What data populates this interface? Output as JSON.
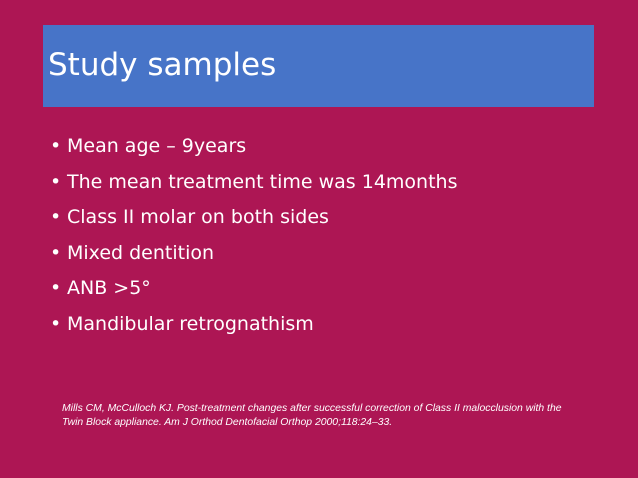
{
  "slide": {
    "title": "Study samples",
    "bullets": [
      "Mean age – 9years",
      "The mean treatment time was 14months",
      "Class II molar on both sides",
      "Mixed dentition",
      "ANB >5°",
      "Mandibular retrognathism"
    ],
    "bullet_symbol": "•",
    "citation": "Mills CM, McCulloch KJ. Post-treatment changes after successful correction of Class II malocclusion with the Twin Block appliance. Am J Orthod Dentofacial Orthop 2000;118:24–33."
  },
  "colors": {
    "background": "#ad1654",
    "title_bar": "#4774c8",
    "text": "#ffffff"
  }
}
